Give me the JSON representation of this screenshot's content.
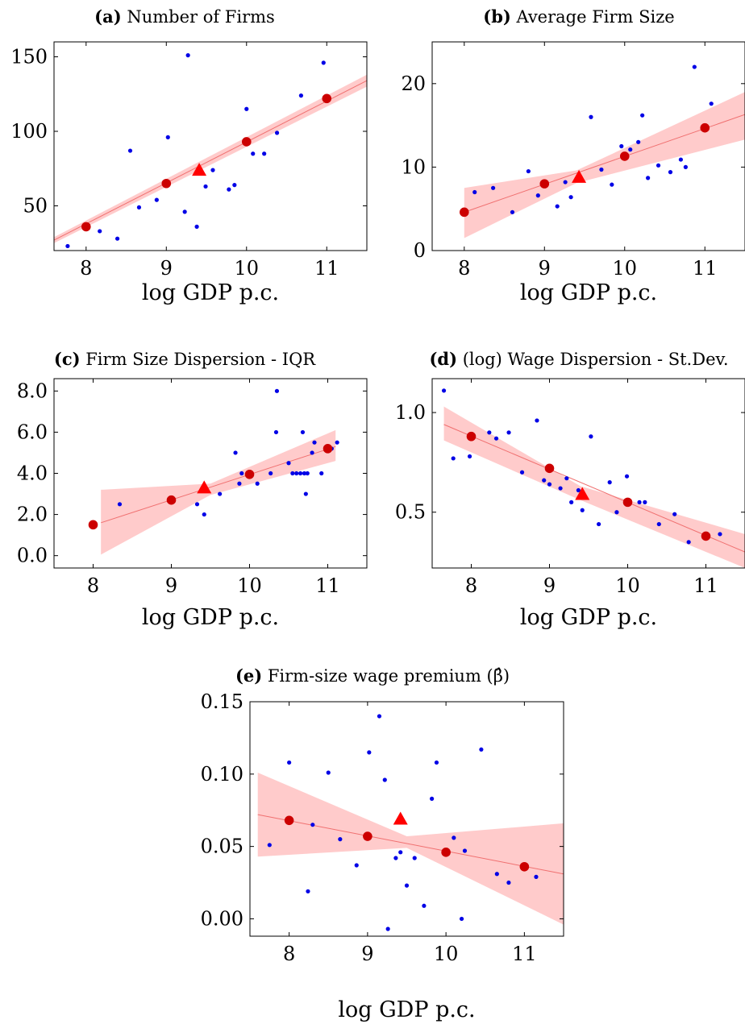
{
  "chart_data": [
    {
      "type": "scatter",
      "label": "(a)",
      "title": "Number of Firms",
      "xlabel": "log GDP p.c.",
      "ylabel": "",
      "xlim": [
        7.6,
        11.5
      ],
      "ylim": [
        20,
        160
      ],
      "xticks": [
        8,
        9,
        10,
        11
      ],
      "yticks": [
        50,
        100,
        150
      ],
      "ytick_labels": [
        "50",
        "100",
        "150"
      ],
      "grid": false,
      "points": [
        [
          7.77,
          23
        ],
        [
          8.17,
          33
        ],
        [
          8.39,
          28
        ],
        [
          8.55,
          87
        ],
        [
          8.66,
          49
        ],
        [
          8.88,
          54
        ],
        [
          9.02,
          96
        ],
        [
          9.23,
          46
        ],
        [
          9.27,
          151
        ],
        [
          9.38,
          36
        ],
        [
          9.49,
          63
        ],
        [
          9.58,
          74
        ],
        [
          9.78,
          61
        ],
        [
          9.85,
          64
        ],
        [
          10.0,
          115
        ],
        [
          10.08,
          85
        ],
        [
          10.22,
          85
        ],
        [
          10.38,
          99
        ],
        [
          10.68,
          124
        ],
        [
          10.96,
          146
        ]
      ],
      "binned": [
        [
          8,
          36
        ],
        [
          9,
          65
        ],
        [
          10,
          93
        ],
        [
          11,
          122
        ]
      ],
      "average": [
        9.41,
        74
      ],
      "fit": {
        "x": [
          7.6,
          11.5
        ],
        "y": [
          27,
          134
        ]
      },
      "band": {
        "x": [
          7.6,
          11.5
        ],
        "upper": [
          29,
          138
        ],
        "lower": [
          25,
          130
        ]
      }
    },
    {
      "type": "scatter",
      "label": "(b)",
      "title": "Average Firm Size",
      "xlabel": "log GDP p.c.",
      "ylabel": "",
      "xlim": [
        7.6,
        11.5
      ],
      "ylim": [
        0,
        25
      ],
      "xticks": [
        8,
        9,
        10,
        11
      ],
      "yticks": [
        0,
        10,
        20
      ],
      "ytick_labels": [
        "0",
        "10",
        "20"
      ],
      "grid": false,
      "points": [
        [
          8.13,
          7
        ],
        [
          8.36,
          7.5
        ],
        [
          8.6,
          4.6
        ],
        [
          8.8,
          9.5
        ],
        [
          8.92,
          6.6
        ],
        [
          9.16,
          5.3
        ],
        [
          9.26,
          8.2
        ],
        [
          9.33,
          6.4
        ],
        [
          9.58,
          16
        ],
        [
          9.71,
          9.7
        ],
        [
          9.84,
          7.9
        ],
        [
          9.96,
          12.5
        ],
        [
          10.07,
          12.1
        ],
        [
          10.17,
          13
        ],
        [
          10.22,
          16.2
        ],
        [
          10.29,
          8.7
        ],
        [
          10.42,
          10.2
        ],
        [
          10.57,
          9.4
        ],
        [
          10.7,
          10.9
        ],
        [
          10.76,
          10
        ],
        [
          10.87,
          22
        ],
        [
          11.08,
          17.6
        ]
      ],
      "binned": [
        [
          8,
          4.6
        ],
        [
          9,
          8.0
        ],
        [
          10,
          11.3
        ],
        [
          11,
          14.7
        ]
      ],
      "average": [
        9.43,
        8.8
      ],
      "fit": {
        "x": [
          8.0,
          11.5
        ],
        "y": [
          4.6,
          16.3
        ]
      },
      "band": {
        "x": [
          8.0,
          9.4,
          11.5
        ],
        "upper": [
          7.5,
          9.6,
          19
        ],
        "lower": [
          1.5,
          8.1,
          13.3
        ]
      }
    },
    {
      "type": "scatter",
      "label": "(c)",
      "title": "Firm Size Dispersion - IQR",
      "xlabel": "log GDP p.c.",
      "ylabel": "",
      "xlim": [
        7.5,
        11.5
      ],
      "ylim": [
        -0.6,
        8.6
      ],
      "xticks": [
        8,
        9,
        10,
        11
      ],
      "yticks": [
        0,
        2,
        4,
        6,
        8
      ],
      "ytick_labels": [
        "0.0",
        "2.0",
        "4.0",
        "6.0",
        "8.0"
      ],
      "grid": false,
      "points": [
        [
          8.34,
          2.5
        ],
        [
          9.33,
          2.5
        ],
        [
          9.42,
          2.0
        ],
        [
          9.62,
          3.0
        ],
        [
          9.82,
          5.0
        ],
        [
          9.87,
          3.5
        ],
        [
          9.9,
          4.0
        ],
        [
          10.1,
          3.5
        ],
        [
          10.27,
          4.0
        ],
        [
          10.34,
          6.0
        ],
        [
          10.35,
          8.0
        ],
        [
          10.5,
          4.5
        ],
        [
          10.55,
          4.0
        ],
        [
          10.6,
          4.0
        ],
        [
          10.65,
          4.0
        ],
        [
          10.68,
          6.0
        ],
        [
          10.7,
          4.0
        ],
        [
          10.72,
          3.0
        ],
        [
          10.74,
          4.0
        ],
        [
          10.8,
          5.0
        ],
        [
          10.83,
          5.5
        ],
        [
          10.92,
          4.0
        ],
        [
          11.05,
          5.2
        ],
        [
          11.12,
          5.5
        ]
      ],
      "binned": [
        [
          8,
          1.5
        ],
        [
          9,
          2.7
        ],
        [
          10,
          3.95
        ],
        [
          11,
          5.2
        ]
      ],
      "average": [
        9.42,
        3.3
      ],
      "fit": {
        "x": [
          8.1,
          11.1
        ],
        "y": [
          1.6,
          5.3
        ]
      },
      "band": {
        "x": [
          8.1,
          9.5,
          11.1
        ],
        "upper": [
          3.2,
          3.5,
          6.1
        ],
        "lower": [
          0.05,
          2.95,
          4.6
        ]
      }
    },
    {
      "type": "scatter",
      "label": "(d)",
      "title": "(log) Wage Dispersion - St.Dev.",
      "xlabel": "log GDP p.c.",
      "ylabel": "",
      "xlim": [
        7.5,
        11.5
      ],
      "ylim": [
        0.22,
        1.17
      ],
      "xticks": [
        8,
        9,
        10,
        11
      ],
      "yticks": [
        0.5,
        1.0
      ],
      "ytick_labels": [
        "0.5",
        "1.0"
      ],
      "grid": false,
      "points": [
        [
          7.65,
          1.11
        ],
        [
          7.77,
          0.77
        ],
        [
          7.98,
          0.78
        ],
        [
          8.23,
          0.9
        ],
        [
          8.32,
          0.87
        ],
        [
          8.48,
          0.9
        ],
        [
          8.65,
          0.7
        ],
        [
          8.84,
          0.96
        ],
        [
          8.93,
          0.66
        ],
        [
          9.0,
          0.64
        ],
        [
          9.14,
          0.62
        ],
        [
          9.22,
          0.67
        ],
        [
          9.28,
          0.55
        ],
        [
          9.37,
          0.61
        ],
        [
          9.42,
          0.51
        ],
        [
          9.53,
          0.88
        ],
        [
          9.63,
          0.44
        ],
        [
          9.77,
          0.65
        ],
        [
          9.86,
          0.5
        ],
        [
          9.99,
          0.68
        ],
        [
          10.15,
          0.55
        ],
        [
          10.22,
          0.55
        ],
        [
          10.4,
          0.44
        ],
        [
          10.6,
          0.49
        ],
        [
          10.78,
          0.35
        ],
        [
          11.18,
          0.39
        ]
      ],
      "binned": [
        [
          8,
          0.88
        ],
        [
          9,
          0.72
        ],
        [
          10,
          0.55
        ],
        [
          11,
          0.38
        ]
      ],
      "average": [
        9.42,
        0.59
      ],
      "fit": {
        "x": [
          7.65,
          11.5
        ],
        "y": [
          0.94,
          0.3
        ]
      },
      "band": {
        "x": [
          7.65,
          9.4,
          11.5
        ],
        "upper": [
          1.03,
          0.63,
          0.39
        ],
        "lower": [
          0.86,
          0.56,
          0.22
        ]
      }
    },
    {
      "type": "scatter",
      "label": "(e)",
      "title": "Firm-size wage premium (β̂)",
      "xlabel": "log GDP p.c.",
      "ylabel": "",
      "xlim": [
        7.5,
        11.5
      ],
      "ylim": [
        -0.012,
        0.15
      ],
      "xticks": [
        8,
        9,
        10,
        11
      ],
      "yticks": [
        0.0,
        0.05,
        0.1,
        0.15
      ],
      "ytick_labels": [
        "0.00",
        "0.05",
        "0.10",
        "0.15"
      ],
      "grid": false,
      "points": [
        [
          7.75,
          0.051
        ],
        [
          8.0,
          0.108
        ],
        [
          8.24,
          0.019
        ],
        [
          8.3,
          0.065
        ],
        [
          8.5,
          0.101
        ],
        [
          8.65,
          0.055
        ],
        [
          8.86,
          0.037
        ],
        [
          9.02,
          0.115
        ],
        [
          9.15,
          0.14
        ],
        [
          9.22,
          0.096
        ],
        [
          9.26,
          -0.007
        ],
        [
          9.36,
          0.042
        ],
        [
          9.42,
          0.046
        ],
        [
          9.5,
          0.023
        ],
        [
          9.6,
          0.042
        ],
        [
          9.72,
          0.009
        ],
        [
          9.82,
          0.083
        ],
        [
          9.88,
          0.108
        ],
        [
          10.1,
          0.056
        ],
        [
          10.2,
          0.0
        ],
        [
          10.24,
          0.047
        ],
        [
          10.45,
          0.117
        ],
        [
          10.65,
          0.031
        ],
        [
          10.8,
          0.025
        ],
        [
          11.15,
          0.029
        ]
      ],
      "binned": [
        [
          8,
          0.068
        ],
        [
          9,
          0.057
        ],
        [
          10,
          0.046
        ],
        [
          11,
          0.036
        ]
      ],
      "average": [
        9.42,
        0.069
      ],
      "fit": {
        "x": [
          7.6,
          11.5
        ],
        "y": [
          0.072,
          0.031
        ]
      },
      "band": {
        "x": [
          7.6,
          9.5,
          11.5
        ],
        "upper": [
          0.101,
          0.057,
          0.066
        ],
        "lower": [
          0.043,
          0.049,
          -0.004
        ]
      }
    }
  ]
}
